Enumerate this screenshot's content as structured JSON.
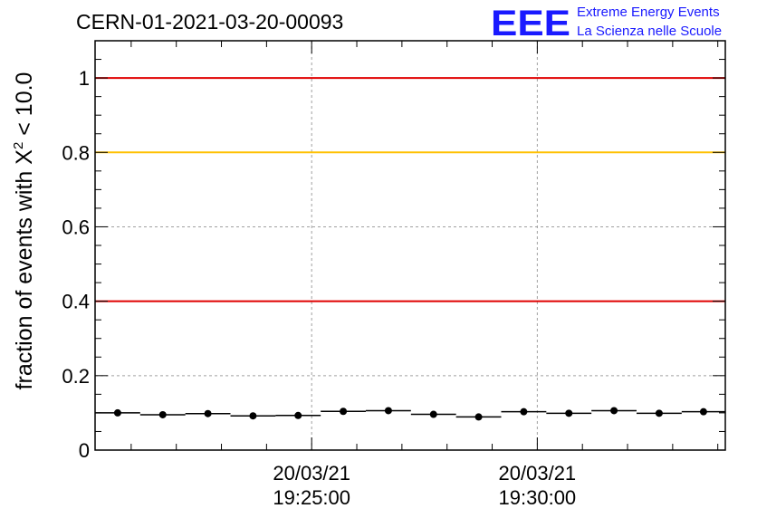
{
  "header": {
    "title": "CERN-01-2021-03-20-00093"
  },
  "logo": {
    "mark": "EEE",
    "line1": "Extreme Energy Events",
    "line2": "La Scienza nelle Scuole",
    "color": "#1a1aff"
  },
  "chart_data": {
    "type": "scatter",
    "ylabel_prefix": "fraction of events with X",
    "ylabel_superscript": "2",
    "ylabel_suffix": " < 10.0",
    "ylim": [
      0,
      1.1
    ],
    "yticks": [
      "0",
      "0.2",
      "0.4",
      "0.6",
      "0.8",
      "1"
    ],
    "ytick_values": [
      0,
      0.2,
      0.4,
      0.6,
      0.8,
      1.0
    ],
    "xlim": [
      "2021-03-20 19:20:12",
      "2021-03-20 19:34:10"
    ],
    "xticks": [
      {
        "time": "2021-03-20 19:25:00",
        "date_label": "20/03/21",
        "time_label": "19:25:00"
      },
      {
        "time": "2021-03-20 19:30:00",
        "date_label": "20/03/21",
        "time_label": "19:30:00"
      }
    ],
    "grid": true,
    "reference_lines": [
      {
        "y": 1.0,
        "color": "#e00000"
      },
      {
        "y": 0.8,
        "color": "#ffc000"
      },
      {
        "y": 0.4,
        "color": "#e00000"
      }
    ],
    "series": [
      {
        "marker": "circle",
        "color": "#000000",
        "points": [
          {
            "x_start": "2021-03-20 19:20:12",
            "x_end": "2021-03-20 19:21:12",
            "y": 0.1
          },
          {
            "x_start": "2021-03-20 19:21:12",
            "x_end": "2021-03-20 19:22:12",
            "y": 0.095
          },
          {
            "x_start": "2021-03-20 19:22:12",
            "x_end": "2021-03-20 19:23:12",
            "y": 0.098
          },
          {
            "x_start": "2021-03-20 19:23:12",
            "x_end": "2021-03-20 19:24:12",
            "y": 0.092
          },
          {
            "x_start": "2021-03-20 19:24:12",
            "x_end": "2021-03-20 19:25:12",
            "y": 0.093
          },
          {
            "x_start": "2021-03-20 19:25:12",
            "x_end": "2021-03-20 19:26:12",
            "y": 0.104
          },
          {
            "x_start": "2021-03-20 19:26:12",
            "x_end": "2021-03-20 19:27:12",
            "y": 0.106
          },
          {
            "x_start": "2021-03-20 19:27:12",
            "x_end": "2021-03-20 19:28:12",
            "y": 0.096
          },
          {
            "x_start": "2021-03-20 19:28:12",
            "x_end": "2021-03-20 19:29:12",
            "y": 0.089
          },
          {
            "x_start": "2021-03-20 19:29:12",
            "x_end": "2021-03-20 19:30:12",
            "y": 0.103
          },
          {
            "x_start": "2021-03-20 19:30:12",
            "x_end": "2021-03-20 19:31:12",
            "y": 0.099
          },
          {
            "x_start": "2021-03-20 19:31:12",
            "x_end": "2021-03-20 19:32:12",
            "y": 0.106
          },
          {
            "x_start": "2021-03-20 19:32:12",
            "x_end": "2021-03-20 19:33:12",
            "y": 0.099
          },
          {
            "x_start": "2021-03-20 19:33:12",
            "x_end": "2021-03-20 19:34:10",
            "y": 0.103
          }
        ]
      }
    ]
  }
}
